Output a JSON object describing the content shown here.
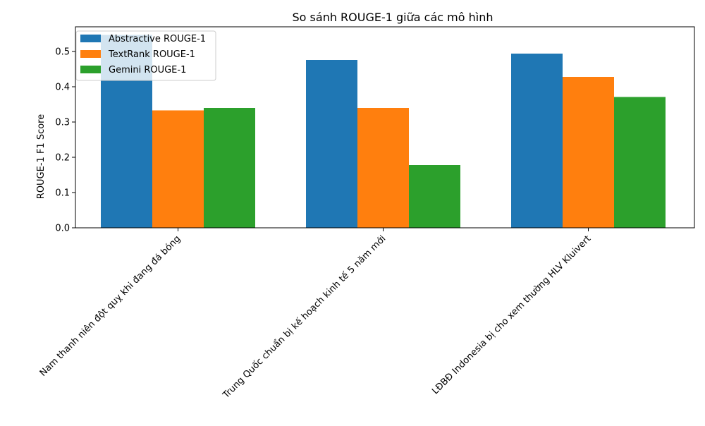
{
  "chart_data": {
    "type": "bar",
    "title": "So sánh ROUGE-1 giữa các mô hình",
    "xlabel": "",
    "ylabel": "ROUGE-1 F1 Score",
    "ylim": [
      0,
      0.57
    ],
    "yticks": [
      0.0,
      0.1,
      0.2,
      0.3,
      0.4,
      0.5
    ],
    "ytick_labels": [
      "0.0",
      "0.1",
      "0.2",
      "0.3",
      "0.4",
      "0.5"
    ],
    "grid": false,
    "legend_position": "top-left",
    "categories": [
      "Nam thanh niên đột quỵ khi đang đá bóng",
      "Trung Quốc chuẩn bị kế hoạch kinh tế 5 năm mới",
      "LĐBĐ Indonesia bị cho xem thường HLV Kluivert"
    ],
    "series": [
      {
        "name": "Abstractive ROUGE-1",
        "color": "#1f77b4",
        "values": [
          0.547,
          0.476,
          0.494
        ]
      },
      {
        "name": "TextRank ROUGE-1",
        "color": "#ff7f0e",
        "values": [
          0.333,
          0.34,
          0.428
        ]
      },
      {
        "name": "Gemini ROUGE-1",
        "color": "#2ca02c",
        "values": [
          0.34,
          0.178,
          0.371
        ]
      }
    ]
  }
}
